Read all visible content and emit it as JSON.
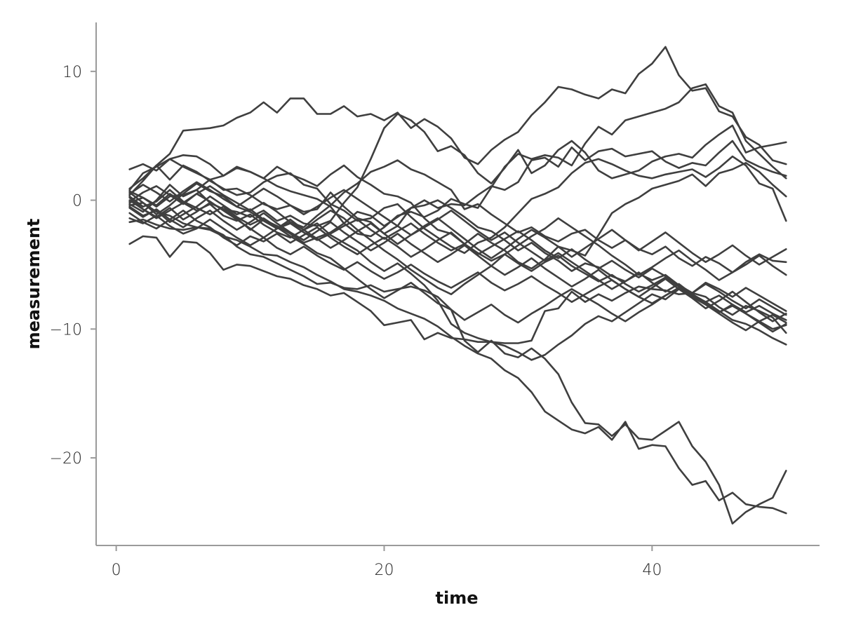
{
  "colors": {
    "line": "#3f3f3f",
    "axis": "#9a9a9a",
    "text": "#222222"
  },
  "chart_data": {
    "type": "line",
    "xlabel": "time",
    "ylabel": "measurement",
    "xlim": [
      -1.5,
      52.5
    ],
    "ylim": [
      -26.8,
      13.8
    ],
    "xticks": [
      0,
      20,
      40
    ],
    "yticks": [
      -20,
      -10,
      0,
      10
    ],
    "grid": false,
    "legend": "none",
    "x": [
      1,
      2,
      3,
      4,
      5,
      6,
      7,
      8,
      9,
      10,
      11,
      12,
      13,
      14,
      15,
      16,
      17,
      18,
      19,
      20,
      21,
      22,
      23,
      24,
      25,
      26,
      27,
      28,
      29,
      30,
      31,
      32,
      33,
      34,
      35,
      36,
      37,
      38,
      39,
      40,
      41,
      42,
      43,
      44,
      45,
      46,
      47,
      48,
      49,
      50
    ],
    "series": [
      {
        "values": [
          0.4,
          1.5,
          2.7,
          3.6,
          5.4,
          5.5,
          5.6,
          5.8,
          6.4,
          6.8,
          7.6,
          6.8,
          7.9,
          7.9,
          6.7,
          6.7,
          7.3,
          6.5,
          6.7,
          6.2,
          6.8,
          5.6,
          6.3,
          5.7,
          4.8,
          3.3,
          2.8,
          3.9,
          4.7,
          5.3,
          6.6,
          7.6,
          8.8,
          8.6,
          8.2,
          7.9,
          8.6,
          8.3,
          9.8,
          10.6,
          11.9,
          9.7,
          8.5,
          8.7,
          6.9,
          6.5,
          4.9,
          4.3,
          3.1,
          2.8
        ]
      },
      {
        "values": [
          0.8,
          2.1,
          2.6,
          3.2,
          3.5,
          3.4,
          2.8,
          1.9,
          2.6,
          2.2,
          1.7,
          1.1,
          0.7,
          0.4,
          0.1,
          -0.5,
          -1.8,
          -2.6,
          -2.8,
          -2.1,
          -1.2,
          -0.9,
          -1.3,
          -0.8,
          0.1,
          -0.3,
          -0.6,
          1.0,
          2.6,
          3.6,
          3.2,
          3.5,
          3.3,
          2.7,
          4.4,
          5.7,
          5.1,
          6.2,
          6.5,
          6.8,
          7.1,
          7.6,
          8.7,
          9.0,
          7.3,
          6.8,
          4.6,
          3.6,
          2.6,
          1.7
        ]
      },
      {
        "values": [
          -0.2,
          0.2,
          -0.5,
          0.3,
          0.4,
          0.8,
          -0.2,
          -0.7,
          -0.9,
          -1.3,
          -0.8,
          -1.6,
          -1.2,
          -1.8,
          -2.0,
          -1.6,
          -0.2,
          1.0,
          3.2,
          5.6,
          6.7,
          6.2,
          5.3,
          3.8,
          4.2,
          3.5,
          2.1,
          1.3,
          2.5,
          3.9,
          2.1,
          2.7,
          3.9,
          4.6,
          3.7,
          2.3,
          1.7,
          2.0,
          2.3,
          3.0,
          3.4,
          3.6,
          3.3,
          4.3,
          5.1,
          5.8,
          3.7,
          4.1,
          4.3,
          4.5
        ]
      },
      {
        "values": [
          2.4,
          2.8,
          2.3,
          3.2,
          2.6,
          2.1,
          1.6,
          0.8,
          0.9,
          0.4,
          -0.3,
          -0.7,
          -0.4,
          -0.9,
          -0.7,
          0.6,
          -0.5,
          -1.4,
          -1.7,
          -2.6,
          -2.0,
          -0.6,
          0.0,
          -0.6,
          -0.3,
          -0.4,
          0.4,
          1.1,
          0.8,
          1.4,
          3.1,
          3.3,
          2.6,
          4.1,
          3.1,
          3.8,
          4.0,
          3.4,
          3.6,
          3.8,
          3.0,
          2.5,
          2.9,
          2.7,
          3.7,
          4.6,
          3.1,
          2.6,
          2.2,
          1.9
        ]
      },
      {
        "values": [
          0.9,
          1.7,
          2.7,
          1.6,
          2.7,
          2.2,
          1.5,
          0.9,
          0.4,
          0.6,
          1.4,
          1.9,
          2.1,
          1.2,
          0.9,
          -0.3,
          -0.8,
          -1.6,
          -1.4,
          -0.6,
          -0.3,
          -1.3,
          -2.2,
          -2.9,
          -3.6,
          -4.1,
          -3.3,
          -2.9,
          -2.1,
          -1.0,
          0.1,
          0.5,
          1.0,
          2.1,
          2.9,
          3.2,
          2.8,
          2.3,
          1.9,
          1.7,
          2.0,
          2.2,
          2.4,
          1.8,
          2.5,
          3.4,
          2.7,
          1.3,
          0.9,
          -1.6
        ]
      },
      {
        "values": [
          -0.3,
          -0.9,
          0.0,
          1.2,
          0.3,
          0.8,
          1.6,
          1.9,
          2.5,
          2.2,
          1.7,
          2.6,
          2.0,
          1.6,
          1.1,
          2.0,
          2.7,
          1.8,
          1.2,
          0.5,
          0.3,
          -0.2,
          -1.4,
          -2.3,
          -2.6,
          -3.4,
          -2.6,
          -3.3,
          -3.9,
          -4.8,
          -5.3,
          -4.6,
          -3.6,
          -3.9,
          -4.3,
          -2.7,
          -1.0,
          -0.3,
          0.2,
          0.9,
          1.2,
          1.5,
          2.0,
          1.1,
          2.1,
          2.4,
          2.9,
          2.2,
          1.2,
          0.3
        ]
      },
      {
        "values": [
          0.6,
          -0.2,
          -1.1,
          -0.4,
          0.5,
          1.3,
          0.7,
          0.3,
          -0.5,
          -0.9,
          -1.6,
          -2.2,
          -1.7,
          -2.1,
          -1.2,
          -0.4,
          0.6,
          1.3,
          2.2,
          2.6,
          3.1,
          2.4,
          2.0,
          1.4,
          0.8,
          -0.7,
          -0.3,
          -1.1,
          -1.8,
          -2.5,
          -2.1,
          -2.8,
          -3.2,
          -2.6,
          -2.3,
          -3.1,
          -3.7,
          -3.1,
          -3.8,
          -4.2,
          -3.6,
          -4.5,
          -5.1,
          -4.4,
          -4.9,
          -5.6,
          -4.8,
          -4.2,
          -4.7,
          -4.8
        ]
      },
      {
        "values": [
          0.2,
          -0.7,
          -1.3,
          -0.6,
          -1.5,
          -0.9,
          -0.2,
          -0.7,
          -1.4,
          -2.3,
          -1.5,
          -2.0,
          -2.6,
          -3.3,
          -2.9,
          -2.5,
          -1.8,
          -0.9,
          -1.2,
          -2.0,
          -1.3,
          -0.6,
          -0.4,
          0.0,
          -0.6,
          -1.3,
          -2.1,
          -2.4,
          -3.1,
          -3.9,
          -3.3,
          -4.1,
          -4.7,
          -5.5,
          -4.9,
          -5.2,
          -5.9,
          -6.3,
          -5.7,
          -6.2,
          -5.8,
          -6.6,
          -7.2,
          -6.4,
          -6.9,
          -7.5,
          -6.8,
          -7.4,
          -8.0,
          -8.6
        ]
      },
      {
        "values": [
          -0.5,
          -1.2,
          -0.8,
          -1.7,
          -1.1,
          -0.5,
          0.3,
          -0.4,
          -1.1,
          -0.7,
          -1.5,
          -2.2,
          -1.8,
          -2.5,
          -3.1,
          -2.6,
          -2.0,
          -1.5,
          -2.3,
          -3.0,
          -2.4,
          -1.8,
          -2.6,
          -3.3,
          -3.9,
          -3.4,
          -4.1,
          -4.7,
          -4.2,
          -4.9,
          -5.5,
          -4.8,
          -4.3,
          -5.1,
          -5.7,
          -6.3,
          -5.8,
          -6.5,
          -7.1,
          -6.6,
          -6.0,
          -6.7,
          -7.3,
          -7.9,
          -7.4,
          -8.1,
          -8.7,
          -8.2,
          -8.8,
          -9.3
        ]
      },
      {
        "values": [
          -1.0,
          -1.7,
          -2.2,
          -1.5,
          -0.8,
          -1.6,
          -2.1,
          -2.9,
          -3.5,
          -2.8,
          -3.2,
          -2.6,
          -3.3,
          -2.7,
          -2.1,
          -2.9,
          -3.6,
          -4.2,
          -3.5,
          -2.9,
          -3.6,
          -4.4,
          -3.8,
          -3.1,
          -2.5,
          -3.4,
          -4.2,
          -3.6,
          -3.0,
          -2.4,
          -3.1,
          -3.9,
          -4.5,
          -3.8,
          -4.6,
          -5.3,
          -4.7,
          -5.4,
          -6.0,
          -5.3,
          -5.9,
          -6.6,
          -7.2,
          -6.5,
          -7.1,
          -7.8,
          -8.4,
          -7.7,
          -8.3,
          -8.9
        ]
      },
      {
        "values": [
          -1.4,
          -1.8,
          -1.2,
          -2.0,
          -2.6,
          -2.2,
          -1.5,
          -2.2,
          -2.9,
          -3.5,
          -2.9,
          -3.7,
          -4.2,
          -3.6,
          -4.3,
          -4.9,
          -5.4,
          -4.8,
          -5.5,
          -6.1,
          -5.6,
          -5.0,
          -5.7,
          -6.3,
          -6.8,
          -6.2,
          -5.6,
          -6.4,
          -7.0,
          -6.5,
          -5.9,
          -6.6,
          -7.2,
          -7.9,
          -7.3,
          -6.7,
          -6.2,
          -6.9,
          -7.5,
          -8.0,
          -7.4,
          -6.8,
          -7.5,
          -8.1,
          -8.7,
          -8.2,
          -8.8,
          -9.4,
          -8.9,
          -9.5
        ]
      },
      {
        "values": [
          -3.4,
          -2.8,
          -2.9,
          -4.4,
          -3.2,
          -3.3,
          -4.1,
          -5.4,
          -5.0,
          -5.1,
          -5.5,
          -5.9,
          -6.1,
          -6.6,
          -6.9,
          -7.4,
          -7.2,
          -7.9,
          -8.6,
          -9.7,
          -9.5,
          -9.3,
          -10.8,
          -10.3,
          -10.7,
          -10.8,
          -11.0,
          -11.0,
          -11.1,
          -11.1,
          -10.9,
          -8.6,
          -8.4,
          -7.1,
          -7.9,
          -7.3,
          -7.8,
          -7.2,
          -6.7,
          -6.9,
          -7.0,
          -7.3,
          -7.2,
          -7.5,
          -8.3,
          -8.9,
          -8.2,
          -8.6,
          -9.1,
          -10.3
        ]
      },
      {
        "values": [
          -1.7,
          -1.5,
          -1.9,
          -2.2,
          -2.3,
          -2.1,
          -2.2,
          -2.7,
          -3.6,
          -4.2,
          -4.4,
          -4.9,
          -5.4,
          -5.9,
          -6.5,
          -6.4,
          -6.8,
          -6.9,
          -6.6,
          -7.1,
          -6.9,
          -6.7,
          -7.0,
          -7.5,
          -8.5,
          -10.9,
          -11.8,
          -10.9,
          -11.9,
          -12.2,
          -11.5,
          -12.3,
          -13.5,
          -15.7,
          -17.3,
          -17.4,
          -18.3,
          -17.4,
          -18.5,
          -18.6,
          -17.9,
          -17.2,
          -19.1,
          -20.3,
          -22.1,
          -25.1,
          -24.2,
          -23.6,
          -23.1,
          -21.0
        ]
      },
      {
        "values": [
          -0.4,
          -0.2,
          -0.9,
          -1.2,
          -1.8,
          -2.1,
          -2.3,
          -2.8,
          -3.1,
          -3.6,
          -4.2,
          -4.3,
          -4.8,
          -5.2,
          -5.8,
          -6.3,
          -6.9,
          -7.1,
          -7.4,
          -7.8,
          -8.4,
          -8.8,
          -9.2,
          -9.8,
          -10.6,
          -11.3,
          -11.9,
          -12.3,
          -13.2,
          -13.8,
          -14.9,
          -16.4,
          -17.1,
          -17.8,
          -18.1,
          -17.6,
          -18.6,
          -17.2,
          -19.3,
          -19.0,
          -19.1,
          -20.8,
          -22.1,
          -21.8,
          -23.3,
          -22.7,
          -23.6,
          -23.8,
          -23.9,
          -24.3
        ]
      },
      {
        "values": [
          0.7,
          0.2,
          -0.4,
          0.5,
          -0.2,
          -0.8,
          -0.3,
          -1.2,
          -1.6,
          -1.1,
          -1.9,
          -2.5,
          -2.9,
          -2.3,
          -1.8,
          -2.7,
          -3.3,
          -3.9,
          -4.8,
          -5.5,
          -4.9,
          -5.7,
          -6.6,
          -7.8,
          -9.6,
          -10.3,
          -10.7,
          -11.0,
          -11.3,
          -11.8,
          -12.4,
          -12.0,
          -11.2,
          -10.5,
          -9.6,
          -9.0,
          -9.4,
          -8.7,
          -8.0,
          -7.3,
          -7.7,
          -6.9,
          -7.4,
          -7.9,
          -8.6,
          -9.3,
          -9.6,
          -10.1,
          -10.7,
          -11.2
        ]
      },
      {
        "values": [
          0.3,
          -0.5,
          -0.1,
          0.8,
          -0.1,
          -0.6,
          -1.1,
          -0.5,
          -1.3,
          -1.9,
          -1.4,
          -2.1,
          -2.8,
          -3.4,
          -4.1,
          -4.5,
          -5.3,
          -6.1,
          -6.9,
          -7.6,
          -7.0,
          -6.4,
          -7.2,
          -8.0,
          -8.5,
          -9.3,
          -8.7,
          -8.1,
          -8.9,
          -9.5,
          -8.8,
          -8.2,
          -7.5,
          -6.9,
          -7.5,
          -8.1,
          -8.8,
          -9.4,
          -8.7,
          -8.1,
          -7.4,
          -6.8,
          -7.5,
          -8.1,
          -8.8,
          -9.5,
          -10.1,
          -9.4,
          -10.0,
          -9.7
        ]
      },
      {
        "values": [
          -0.1,
          0.6,
          1.1,
          0.4,
          -0.3,
          0.5,
          1.1,
          0.4,
          -0.2,
          -0.8,
          -0.2,
          -0.9,
          -1.7,
          -2.3,
          -1.5,
          -0.8,
          -1.4,
          -2.3,
          -3.1,
          -3.9,
          -4.6,
          -5.4,
          -6.1,
          -6.8,
          -7.3,
          -6.5,
          -5.8,
          -5.1,
          -4.2,
          -3.5,
          -2.8,
          -2.2,
          -1.4,
          -2.1,
          -2.8,
          -3.5,
          -4.3,
          -5.0,
          -5.8,
          -5.2,
          -4.5,
          -3.9,
          -4.7,
          -5.4,
          -6.2,
          -5.6,
          -5.0,
          -4.3,
          -5.1,
          -5.8
        ]
      },
      {
        "values": [
          0.0,
          -0.7,
          -1.4,
          -0.8,
          -0.2,
          0.5,
          -0.1,
          -0.8,
          -1.5,
          -2.2,
          -2.9,
          -2.2,
          -1.5,
          -2.3,
          -3.0,
          -3.7,
          -3.1,
          -2.4,
          -1.8,
          -2.6,
          -3.4,
          -2.7,
          -2.0,
          -1.4,
          -2.2,
          -3.0,
          -3.8,
          -4.5,
          -3.8,
          -3.0,
          -2.3,
          -2.9,
          -3.6,
          -4.4,
          -3.7,
          -3.0,
          -2.3,
          -3.1,
          -3.9,
          -3.2,
          -2.5,
          -3.3,
          -4.1,
          -4.8,
          -4.2,
          -3.5,
          -4.3,
          -5.0,
          -4.4,
          -3.8
        ]
      },
      {
        "values": [
          0.5,
          1.2,
          0.6,
          -0.1,
          0.7,
          1.4,
          0.8,
          0.1,
          -0.5,
          0.2,
          0.9,
          0.3,
          -0.4,
          -1.1,
          -0.5,
          0.2,
          0.8,
          0.1,
          -0.6,
          -1.3,
          -2.0,
          -2.7,
          -2.1,
          -1.5,
          -0.8,
          -1.6,
          -2.4,
          -3.1,
          -2.5,
          -3.3,
          -4.0,
          -4.7,
          -4.1,
          -4.8,
          -5.5,
          -6.2,
          -6.9,
          -6.3,
          -5.6,
          -6.4,
          -7.1,
          -6.5,
          -7.3,
          -8.0,
          -8.7,
          -8.1,
          -8.8,
          -9.5,
          -10.2,
          -9.6
        ]
      },
      {
        "values": [
          -0.6,
          -1.3,
          -0.7,
          -1.5,
          -2.1,
          -1.4,
          -0.8,
          -1.6,
          -2.3,
          -1.7,
          -1.0,
          -1.8,
          -2.5,
          -3.1,
          -2.4,
          -1.7,
          -2.5,
          -3.2,
          -3.9,
          -3.3,
          -2.6,
          -3.4,
          -4.1,
          -4.8,
          -4.2,
          -3.5,
          -4.3,
          -5.1,
          -5.8,
          -5.2,
          -4.5,
          -5.3,
          -6.0,
          -6.7,
          -6.1,
          -5.4,
          -6.2,
          -6.9,
          -7.5,
          -6.8,
          -6.1,
          -6.9,
          -7.6,
          -8.4,
          -7.8,
          -7.1,
          -7.9,
          -8.7,
          -9.4,
          -8.8
        ]
      }
    ]
  }
}
